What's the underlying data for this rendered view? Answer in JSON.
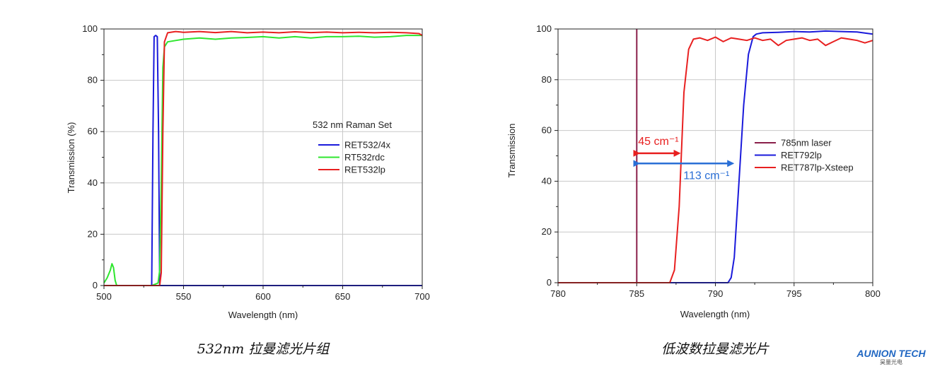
{
  "chart_data": [
    {
      "type": "line",
      "title": "",
      "xlabel": "Wavelength (nm)",
      "ylabel": "Transmission (%)",
      "xlim": [
        500,
        700
      ],
      "ylim": [
        0,
        100
      ],
      "xticks": [
        500,
        550,
        600,
        650,
        700
      ],
      "yticks": [
        0,
        20,
        40,
        60,
        80,
        100
      ],
      "grid": true,
      "legend_title": "532 nm Raman Set",
      "legend_position": "middle-right",
      "caption": "532nm 拉曼滤光片组",
      "series": [
        {
          "name": "RET532/4x",
          "color": "#1a1adb",
          "x": [
            500,
            530,
            530.8,
            531.5,
            532.5,
            533.5,
            534.3,
            535,
            700
          ],
          "y": [
            0,
            0,
            60,
            97,
            97.5,
            97,
            60,
            0,
            0
          ]
        },
        {
          "name": "RT532rdc",
          "color": "#2ee62e",
          "x": [
            500,
            502,
            504,
            505,
            506,
            507,
            508,
            530,
            534,
            535,
            536,
            537,
            538,
            540,
            545,
            550,
            560,
            570,
            580,
            590,
            600,
            610,
            620,
            630,
            640,
            650,
            660,
            670,
            680,
            690,
            700
          ],
          "y": [
            1,
            3,
            6,
            8.5,
            7,
            2,
            0,
            0,
            1,
            6,
            40,
            85,
            93,
            95,
            95.5,
            96,
            96.5,
            96,
            96.5,
            96.7,
            97,
            96.5,
            97,
            96.5,
            97,
            97,
            97.2,
            96.8,
            97,
            97.5,
            97.5
          ]
        },
        {
          "name": "RET532lp",
          "color": "#e82020",
          "x": [
            500,
            535,
            536,
            537,
            538,
            540,
            545,
            550,
            560,
            570,
            580,
            590,
            600,
            610,
            620,
            630,
            640,
            650,
            660,
            670,
            680,
            690,
            698,
            700
          ],
          "y": [
            0,
            0,
            5,
            60,
            95,
            98.5,
            99,
            98.7,
            99,
            98.6,
            99,
            98.5,
            98.8,
            98.5,
            98.9,
            98.6,
            98.8,
            98.5,
            98.7,
            98.5,
            98.7,
            98.5,
            98.2,
            97.5
          ]
        }
      ]
    },
    {
      "type": "line",
      "title": "",
      "xlabel": "Wavelength (nm)",
      "ylabel": "Transmission",
      "xlim": [
        780,
        800
      ],
      "ylim": [
        0,
        100
      ],
      "xticks": [
        780,
        785,
        790,
        795,
        800
      ],
      "yticks": [
        0,
        20,
        40,
        60,
        80,
        100
      ],
      "grid": true,
      "legend_position": "middle-right",
      "caption": "低波数拉曼滤光片",
      "series": [
        {
          "name": "785nm laser",
          "color": "#8a1f4a",
          "x": [
            785,
            785
          ],
          "y": [
            0,
            100
          ]
        },
        {
          "name": "RET792lp",
          "color": "#1a1adb",
          "x": [
            780,
            790.8,
            791,
            791.2,
            791.5,
            791.8,
            792.1,
            792.4,
            792.6,
            793,
            794,
            795,
            796,
            797,
            798,
            799,
            800
          ],
          "y": [
            0,
            0,
            2,
            10,
            40,
            70,
            90,
            97,
            98,
            98.5,
            98.7,
            99,
            98.8,
            99.2,
            99,
            98.8,
            98
          ]
        },
        {
          "name": "RET787lp-Xsteep",
          "color": "#e82020",
          "x": [
            780,
            787.1,
            787.4,
            787.7,
            788,
            788.3,
            788.6,
            789,
            789.5,
            790,
            790.5,
            791,
            791.5,
            792,
            792.5,
            793,
            793.5,
            794,
            794.5,
            795,
            795.5,
            796,
            796.5,
            797,
            797.5,
            798,
            798.5,
            799,
            799.5,
            800
          ],
          "y": [
            0,
            0,
            5,
            30,
            75,
            92,
            96,
            96.5,
            95.5,
            96.8,
            95,
            96.5,
            96,
            95.5,
            96.5,
            95.5,
            96,
            93.5,
            95.5,
            96,
            96.5,
            95.5,
            96,
            93.5,
            95,
            96.5,
            96,
            95.5,
            94.5,
            95.5
          ]
        }
      ],
      "annotations": [
        {
          "label": "45 cm⁻¹",
          "color": "#e82020",
          "from": 785,
          "to": 787.8,
          "y": 51
        },
        {
          "label": "113 cm⁻¹",
          "color": "#2a6fd6",
          "from": 785,
          "to": 791.2,
          "y": 47
        }
      ]
    }
  ],
  "logo": {
    "main": "AUNION TECH",
    "sub": "昊量光电"
  }
}
